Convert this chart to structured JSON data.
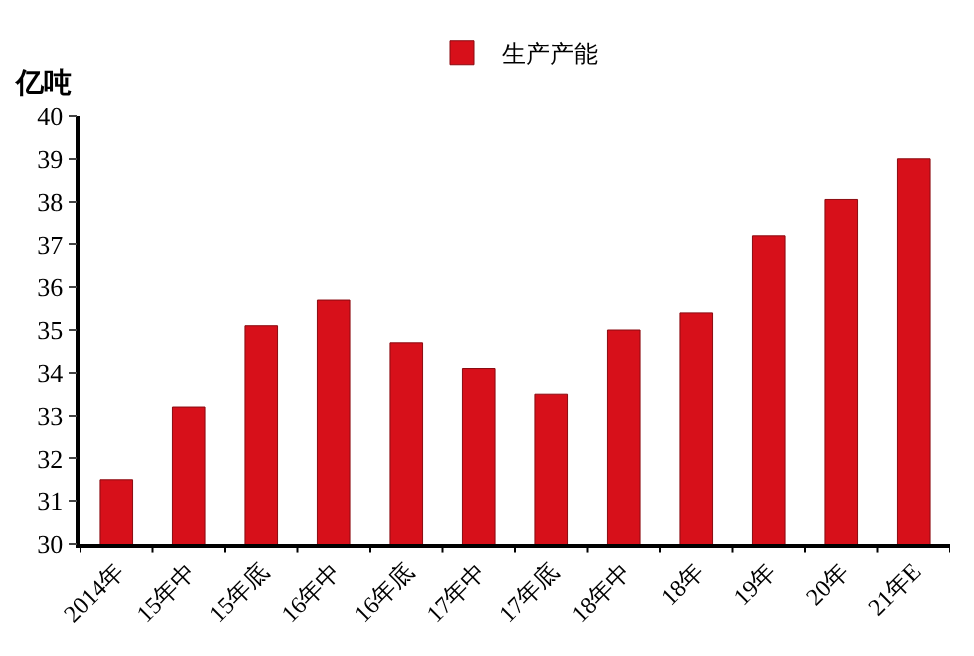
{
  "chart_data": {
    "type": "bar",
    "ylabel": "亿吨",
    "categories": [
      "2014年",
      "15年中",
      "15年底",
      "16年中",
      "16年底",
      "17年中",
      "17年底",
      "18年中",
      "18年",
      "19年",
      "20年",
      "21年E"
    ],
    "series": [
      {
        "name": "生产产能",
        "color": "#d7101a",
        "values": [
          31.5,
          33.2,
          35.1,
          35.7,
          34.7,
          34.1,
          33.5,
          35.0,
          35.4,
          37.2,
          38.05,
          39.0
        ]
      }
    ],
    "ylim": [
      30,
      40
    ],
    "yticks": [
      30,
      31,
      32,
      33,
      34,
      35,
      36,
      37,
      38,
      39,
      40
    ],
    "grid": false,
    "legend": "top"
  }
}
